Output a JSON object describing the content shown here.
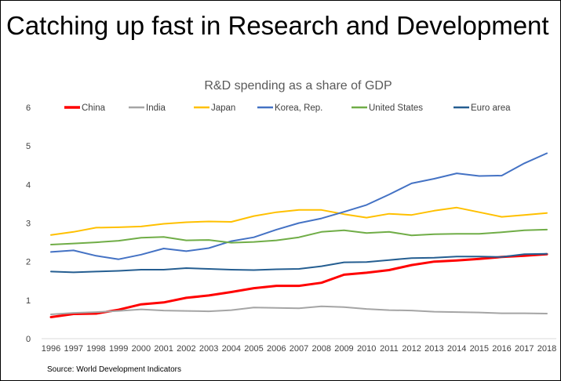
{
  "slide": {
    "title": "Catching up fast in Research and Development",
    "source": "Source: World Development Indicators"
  },
  "chart_data": {
    "type": "line",
    "title": "R&D spending as a share of GDP",
    "xlabel": "",
    "ylabel": "",
    "ylim": [
      0,
      6
    ],
    "yticks": [
      "0",
      "1",
      "2",
      "3",
      "4",
      "5",
      "6"
    ],
    "grid": false,
    "legend": "top",
    "categories": [
      "1996",
      "1997",
      "1998",
      "1999",
      "2000",
      "2001",
      "2002",
      "2003",
      "2004",
      "2005",
      "2006",
      "2007",
      "2008",
      "2009",
      "2010",
      "2011",
      "2012",
      "2013",
      "2014",
      "2015",
      "2016",
      "2017",
      "2018"
    ],
    "series": [
      {
        "name": "China",
        "color": "#ff0000",
        "width": 3,
        "values": [
          0.56,
          0.64,
          0.65,
          0.75,
          0.89,
          0.94,
          1.06,
          1.12,
          1.21,
          1.31,
          1.37,
          1.37,
          1.45,
          1.66,
          1.71,
          1.78,
          1.91,
          2.0,
          2.03,
          2.07,
          2.12,
          2.15,
          2.19
        ]
      },
      {
        "name": "India",
        "color": "#a5a5a5",
        "width": 2,
        "values": [
          0.63,
          0.67,
          0.69,
          0.72,
          0.76,
          0.73,
          0.72,
          0.71,
          0.74,
          0.81,
          0.8,
          0.79,
          0.84,
          0.82,
          0.77,
          0.74,
          0.73,
          0.7,
          0.69,
          0.68,
          0.66,
          0.66,
          0.65
        ]
      },
      {
        "name": "Japan",
        "color": "#ffc000",
        "width": 2,
        "values": [
          2.69,
          2.77,
          2.88,
          2.89,
          2.91,
          2.98,
          3.02,
          3.04,
          3.03,
          3.18,
          3.28,
          3.34,
          3.34,
          3.23,
          3.14,
          3.24,
          3.21,
          3.32,
          3.4,
          3.28,
          3.16,
          3.21,
          3.26
        ]
      },
      {
        "name": "Korea, Rep.",
        "color": "#4472c4",
        "width": 2,
        "values": [
          2.25,
          2.29,
          2.15,
          2.06,
          2.18,
          2.34,
          2.27,
          2.35,
          2.53,
          2.63,
          2.83,
          3.0,
          3.12,
          3.29,
          3.47,
          3.74,
          4.03,
          4.15,
          4.29,
          4.22,
          4.23,
          4.55,
          4.81
        ]
      },
      {
        "name": "United States",
        "color": "#70ad47",
        "width": 2,
        "values": [
          2.44,
          2.47,
          2.5,
          2.54,
          2.62,
          2.64,
          2.55,
          2.56,
          2.49,
          2.51,
          2.55,
          2.63,
          2.77,
          2.81,
          2.74,
          2.77,
          2.68,
          2.71,
          2.72,
          2.72,
          2.76,
          2.81,
          2.83
        ]
      },
      {
        "name": "Euro area",
        "color": "#255e91",
        "width": 2,
        "values": [
          1.74,
          1.72,
          1.74,
          1.76,
          1.79,
          1.79,
          1.83,
          1.81,
          1.79,
          1.78,
          1.8,
          1.81,
          1.88,
          1.98,
          1.99,
          2.04,
          2.09,
          2.1,
          2.13,
          2.13,
          2.12,
          2.19,
          2.2
        ]
      }
    ]
  }
}
